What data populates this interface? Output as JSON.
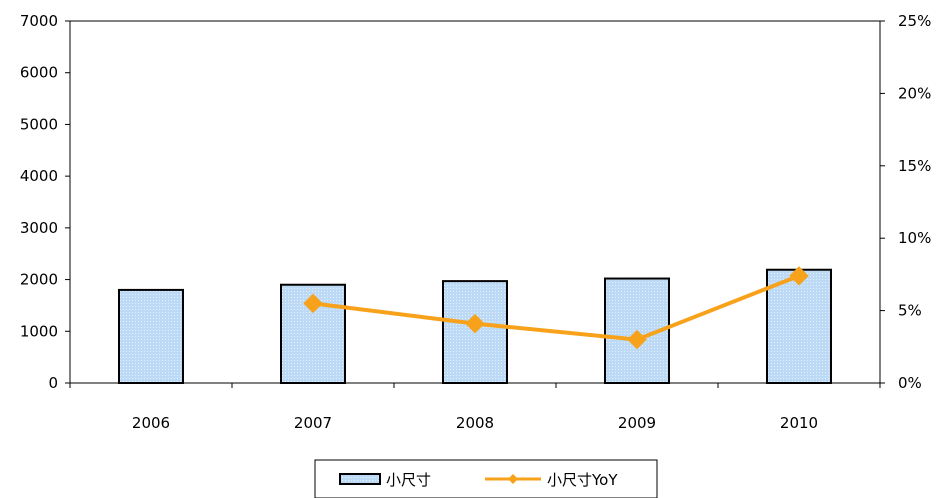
{
  "chart_data": {
    "type": "bar",
    "categories": [
      "2006",
      "2007",
      "2008",
      "2009",
      "2010"
    ],
    "series": [
      {
        "name": "小尺寸",
        "type": "bar",
        "axis": "left",
        "values": [
          1800,
          1900,
          1970,
          2020,
          2190
        ],
        "color": "#bcd9f5",
        "edge_color": "#000000"
      },
      {
        "name": "小尺寸YoY",
        "type": "line",
        "axis": "right",
        "marker": "diamond",
        "values": [
          null,
          0.055,
          0.041,
          0.03,
          0.074
        ],
        "color": "#f7a21a"
      }
    ],
    "y_left": {
      "ylim": [
        0,
        7000
      ],
      "ticks": [
        0,
        1000,
        2000,
        3000,
        4000,
        5000,
        6000,
        7000
      ],
      "tick_labels": [
        "0",
        "1000",
        "2000",
        "3000",
        "4000",
        "5000",
        "6000",
        "7000"
      ]
    },
    "y_right": {
      "ylim": [
        0,
        0.25
      ],
      "ticks": [
        0,
        0.05,
        0.1,
        0.15,
        0.2,
        0.25
      ],
      "tick_labels": [
        "0%",
        "5%",
        "10%",
        "15%",
        "20%",
        "25%"
      ]
    },
    "title": "",
    "xlabel": "",
    "ylabel": "",
    "grid": false,
    "legend_position": "bottom-center"
  }
}
